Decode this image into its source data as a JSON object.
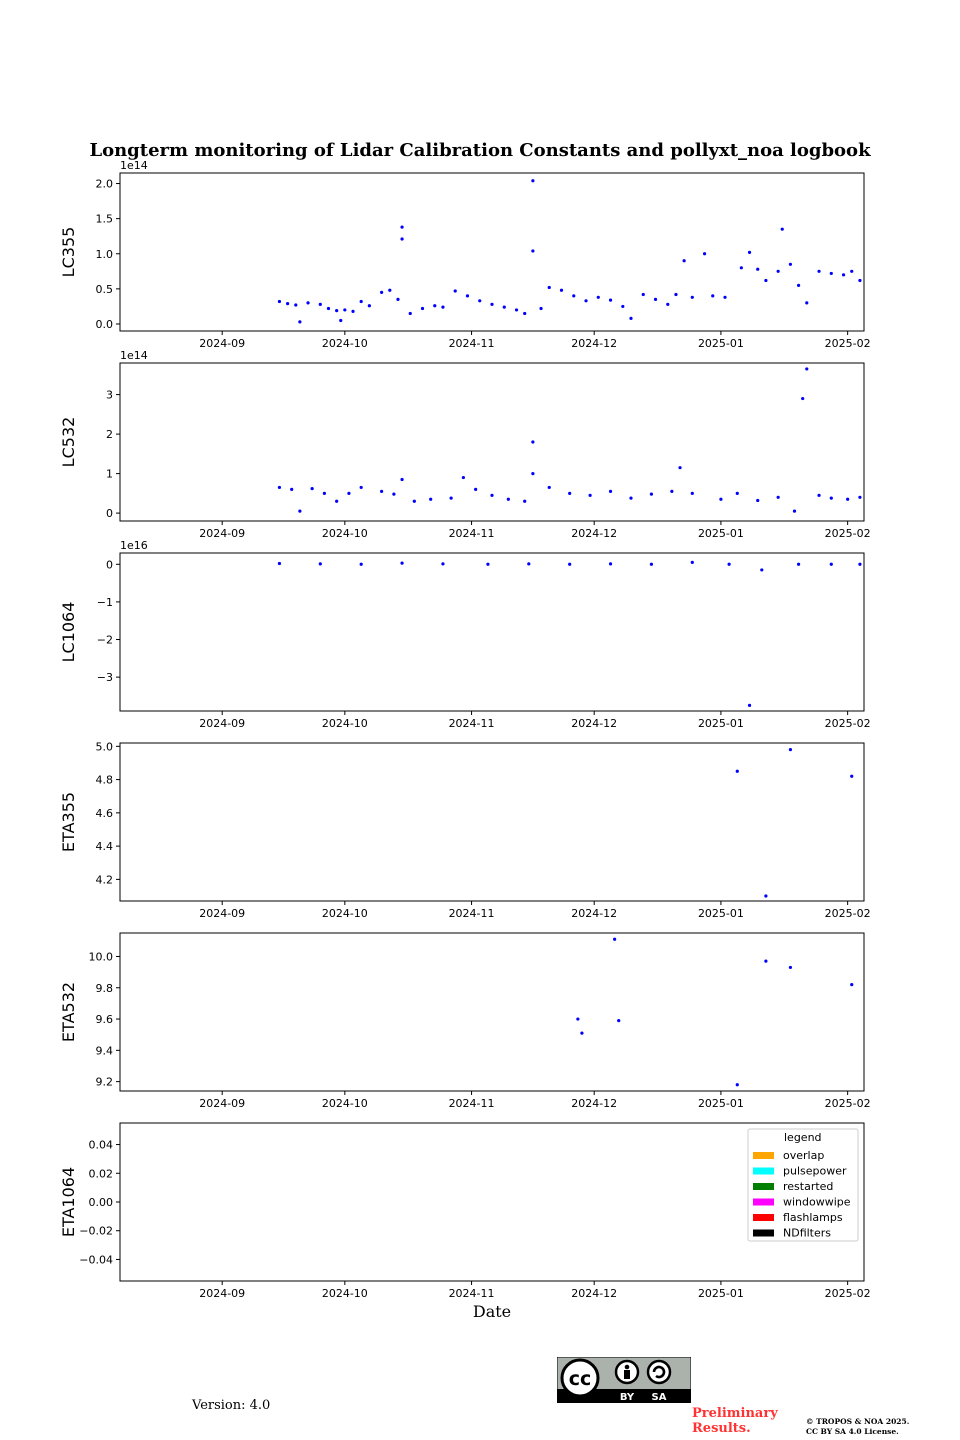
{
  "figure": {
    "title": "Longterm monitoring of Lidar Calibration Constants and pollyxt_noa logbook",
    "xlabel": "Date",
    "version": "Version: 4.0",
    "preliminary": [
      "Preliminary",
      "Results."
    ],
    "copyright": [
      "© TROPOS & NOA 2025.",
      "CC BY SA 4.0 License."
    ],
    "license_badge": {
      "left": "BY",
      "right": "SA",
      "symbol": "cc"
    },
    "colors": {
      "points": "#0000ff",
      "frame": "#000000"
    }
  },
  "chart_data": [
    {
      "type": "scatter",
      "ylabel": "LC355",
      "offset_text": "1e14",
      "xlim": [
        "2024-08-07",
        "2025-02-05"
      ],
      "x_ticks": [
        "2024-09",
        "2024-10",
        "2024-11",
        "2024-12",
        "2025-01",
        "2025-02"
      ],
      "ylim": [
        -0.1,
        2.15
      ],
      "y_ticks": [
        "0.0",
        "0.5",
        "1.0",
        "1.5",
        "2.0"
      ],
      "series": [
        {
          "points": [
            [
              "2024-09-15",
              0.32
            ],
            [
              "2024-09-17",
              0.29
            ],
            [
              "2024-09-19",
              0.27
            ],
            [
              "2024-09-20",
              0.03
            ],
            [
              "2024-09-22",
              0.3
            ],
            [
              "2024-09-25",
              0.28
            ],
            [
              "2024-09-27",
              0.22
            ],
            [
              "2024-09-29",
              0.19
            ],
            [
              "2024-09-30",
              0.05
            ],
            [
              "2024-10-01",
              0.2
            ],
            [
              "2024-10-03",
              0.18
            ],
            [
              "2024-10-05",
              0.32
            ],
            [
              "2024-10-07",
              0.26
            ],
            [
              "2024-10-10",
              0.45
            ],
            [
              "2024-10-12",
              0.48
            ],
            [
              "2024-10-14",
              0.35
            ],
            [
              "2024-10-15",
              1.38
            ],
            [
              "2024-10-15",
              1.21
            ],
            [
              "2024-10-17",
              0.15
            ],
            [
              "2024-10-20",
              0.22
            ],
            [
              "2024-10-23",
              0.26
            ],
            [
              "2024-10-25",
              0.24
            ],
            [
              "2024-10-28",
              0.47
            ],
            [
              "2024-10-31",
              0.4
            ],
            [
              "2024-11-03",
              0.33
            ],
            [
              "2024-11-06",
              0.28
            ],
            [
              "2024-11-09",
              0.24
            ],
            [
              "2024-11-12",
              0.2
            ],
            [
              "2024-11-14",
              0.15
            ],
            [
              "2024-11-16",
              2.04
            ],
            [
              "2024-11-16",
              1.04
            ],
            [
              "2024-11-18",
              0.22
            ],
            [
              "2024-11-20",
              0.52
            ],
            [
              "2024-11-23",
              0.48
            ],
            [
              "2024-11-26",
              0.4
            ],
            [
              "2024-11-29",
              0.33
            ],
            [
              "2024-12-02",
              0.38
            ],
            [
              "2024-12-05",
              0.34
            ],
            [
              "2024-12-08",
              0.25
            ],
            [
              "2024-12-10",
              0.08
            ],
            [
              "2024-12-13",
              0.42
            ],
            [
              "2024-12-16",
              0.35
            ],
            [
              "2024-12-19",
              0.28
            ],
            [
              "2024-12-21",
              0.42
            ],
            [
              "2024-12-23",
              0.9
            ],
            [
              "2024-12-25",
              0.38
            ],
            [
              "2024-12-28",
              1.0
            ],
            [
              "2024-12-30",
              0.4
            ],
            [
              "2025-01-02",
              0.38
            ],
            [
              "2025-01-06",
              0.8
            ],
            [
              "2025-01-08",
              1.02
            ],
            [
              "2025-01-10",
              0.78
            ],
            [
              "2025-01-12",
              0.62
            ],
            [
              "2025-01-15",
              0.75
            ],
            [
              "2025-01-16",
              1.35
            ],
            [
              "2025-01-18",
              0.85
            ],
            [
              "2025-01-20",
              0.55
            ],
            [
              "2025-01-22",
              0.3
            ],
            [
              "2025-01-25",
              0.75
            ],
            [
              "2025-01-28",
              0.72
            ],
            [
              "2025-01-31",
              0.7
            ],
            [
              "2025-02-02",
              0.75
            ],
            [
              "2025-02-04",
              0.62
            ]
          ]
        }
      ]
    },
    {
      "type": "scatter",
      "ylabel": "LC532",
      "offset_text": "1e14",
      "xlim": [
        "2024-08-07",
        "2025-02-05"
      ],
      "x_ticks": [
        "2024-09",
        "2024-10",
        "2024-11",
        "2024-12",
        "2025-01",
        "2025-02"
      ],
      "ylim": [
        -0.2,
        3.8
      ],
      "y_ticks": [
        "0",
        "1",
        "2",
        "3"
      ],
      "series": [
        {
          "points": [
            [
              "2024-09-15",
              0.65
            ],
            [
              "2024-09-18",
              0.6
            ],
            [
              "2024-09-20",
              0.05
            ],
            [
              "2024-09-23",
              0.62
            ],
            [
              "2024-09-26",
              0.5
            ],
            [
              "2024-09-29",
              0.3
            ],
            [
              "2024-10-02",
              0.5
            ],
            [
              "2024-10-05",
              0.65
            ],
            [
              "2024-10-10",
              0.55
            ],
            [
              "2024-10-13",
              0.48
            ],
            [
              "2024-10-15",
              0.85
            ],
            [
              "2024-10-18",
              0.3
            ],
            [
              "2024-10-22",
              0.35
            ],
            [
              "2024-10-27",
              0.38
            ],
            [
              "2024-10-30",
              0.9
            ],
            [
              "2024-11-02",
              0.6
            ],
            [
              "2024-11-06",
              0.45
            ],
            [
              "2024-11-10",
              0.35
            ],
            [
              "2024-11-14",
              0.3
            ],
            [
              "2024-11-16",
              1.8
            ],
            [
              "2024-11-16",
              1.0
            ],
            [
              "2024-11-20",
              0.65
            ],
            [
              "2024-11-25",
              0.5
            ],
            [
              "2024-11-30",
              0.45
            ],
            [
              "2024-12-05",
              0.55
            ],
            [
              "2024-12-10",
              0.38
            ],
            [
              "2024-12-15",
              0.48
            ],
            [
              "2024-12-20",
              0.55
            ],
            [
              "2024-12-22",
              1.15
            ],
            [
              "2024-12-25",
              0.5
            ],
            [
              "2025-01-01",
              0.35
            ],
            [
              "2025-01-05",
              0.5
            ],
            [
              "2025-01-10",
              0.32
            ],
            [
              "2025-01-15",
              0.4
            ],
            [
              "2025-01-19",
              0.05
            ],
            [
              "2025-01-21",
              2.9
            ],
            [
              "2025-01-22",
              3.65
            ],
            [
              "2025-01-25",
              0.45
            ],
            [
              "2025-01-28",
              0.38
            ],
            [
              "2025-02-01",
              0.35
            ],
            [
              "2025-02-04",
              0.4
            ]
          ]
        }
      ]
    },
    {
      "type": "scatter",
      "ylabel": "LC1064",
      "offset_text": "1e16",
      "xlim": [
        "2024-08-07",
        "2025-02-05"
      ],
      "x_ticks": [
        "2024-09",
        "2024-10",
        "2024-11",
        "2024-12",
        "2025-01",
        "2025-02"
      ],
      "ylim": [
        -3.9,
        0.3
      ],
      "y_ticks": [
        "0",
        "−1",
        "−2",
        "−3"
      ],
      "series": [
        {
          "points": [
            [
              "2024-09-15",
              0.02
            ],
            [
              "2024-09-25",
              0.01
            ],
            [
              "2024-10-05",
              0.0
            ],
            [
              "2024-10-15",
              0.03
            ],
            [
              "2024-10-25",
              0.01
            ],
            [
              "2024-11-05",
              0.0
            ],
            [
              "2024-11-15",
              0.01
            ],
            [
              "2024-11-25",
              0.0
            ],
            [
              "2024-12-05",
              0.01
            ],
            [
              "2024-12-15",
              0.0
            ],
            [
              "2024-12-25",
              0.05
            ],
            [
              "2025-01-03",
              0.0
            ],
            [
              "2025-01-08",
              -3.75
            ],
            [
              "2025-01-11",
              -0.15
            ],
            [
              "2025-01-20",
              0.0
            ],
            [
              "2025-01-28",
              0.0
            ],
            [
              "2025-02-04",
              0.0
            ]
          ]
        }
      ]
    },
    {
      "type": "scatter",
      "ylabel": "ETA355",
      "xlim": [
        "2024-08-07",
        "2025-02-05"
      ],
      "x_ticks": [
        "2024-09",
        "2024-10",
        "2024-11",
        "2024-12",
        "2025-01",
        "2025-02"
      ],
      "ylim": [
        4.07,
        5.02
      ],
      "y_ticks": [
        "4.2",
        "4.4",
        "4.6",
        "4.8",
        "5.0"
      ],
      "series": [
        {
          "points": [
            [
              "2025-01-05",
              4.85
            ],
            [
              "2025-01-12",
              4.1
            ],
            [
              "2025-01-18",
              4.98
            ],
            [
              "2025-02-02",
              4.82
            ]
          ]
        }
      ]
    },
    {
      "type": "scatter",
      "ylabel": "ETA532",
      "xlim": [
        "2024-08-07",
        "2025-02-05"
      ],
      "x_ticks": [
        "2024-09",
        "2024-10",
        "2024-11",
        "2024-12",
        "2025-01",
        "2025-02"
      ],
      "ylim": [
        9.14,
        10.15
      ],
      "y_ticks": [
        "9.2",
        "9.4",
        "9.6",
        "9.8",
        "10.0"
      ],
      "series": [
        {
          "points": [
            [
              "2024-11-27",
              9.6
            ],
            [
              "2024-11-28",
              9.51
            ],
            [
              "2024-12-06",
              10.11
            ],
            [
              "2024-12-07",
              9.59
            ],
            [
              "2025-01-05",
              9.18
            ],
            [
              "2025-01-12",
              9.97
            ],
            [
              "2025-01-18",
              9.93
            ],
            [
              "2025-02-02",
              9.82
            ]
          ]
        }
      ]
    },
    {
      "type": "scatter",
      "ylabel": "ETA1064",
      "xlim": [
        "2024-08-07",
        "2025-02-05"
      ],
      "x_ticks": [
        "2024-09",
        "2024-10",
        "2024-11",
        "2024-12",
        "2025-01",
        "2025-02"
      ],
      "ylim": [
        -0.055,
        0.055
      ],
      "y_ticks": [
        "−0.04",
        "−0.02",
        "0.00",
        "0.02",
        "0.04"
      ],
      "series": [
        {
          "points": []
        }
      ],
      "legend": {
        "title": "legend",
        "placement": "upper-right",
        "entries": [
          {
            "label": "overlap",
            "color": "#ffa500"
          },
          {
            "label": "pulsepower",
            "color": "#00ffff"
          },
          {
            "label": "restarted",
            "color": "#008000"
          },
          {
            "label": "windowwipe",
            "color": "#ff00ff"
          },
          {
            "label": "flashlamps",
            "color": "#ff0000"
          },
          {
            "label": "NDfilters",
            "color": "#000000"
          }
        ]
      }
    }
  ]
}
